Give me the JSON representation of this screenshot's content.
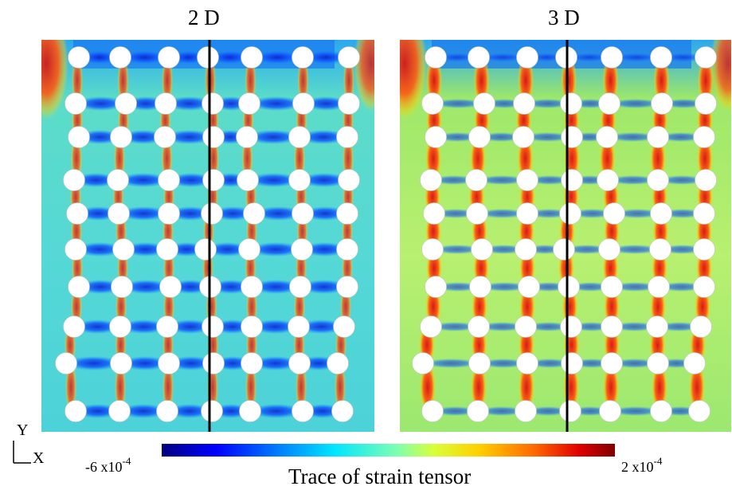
{
  "panels": [
    {
      "title": "2 D"
    },
    {
      "title": "3 D"
    }
  ],
  "axes": {
    "y_label": "Y",
    "x_label": "X"
  },
  "colorbar": {
    "min_label": "-6 x10",
    "min_exp": "-4",
    "max_label": "2 x10",
    "max_exp": "-4",
    "title": "Trace of strain tensor",
    "colors": [
      "#00007f",
      "#0000ff",
      "#0080ff",
      "#00e5ff",
      "#7fffb0",
      "#d8ff3a",
      "#ffd000",
      "#ff6a00",
      "#e00000",
      "#7f0000"
    ]
  },
  "colors": {
    "background_field": "#33ccdd",
    "high_strain": "#e8401a",
    "low_strain": "#1a2bd0",
    "fiber": "#ffffff",
    "section_line": "#000000"
  }
}
